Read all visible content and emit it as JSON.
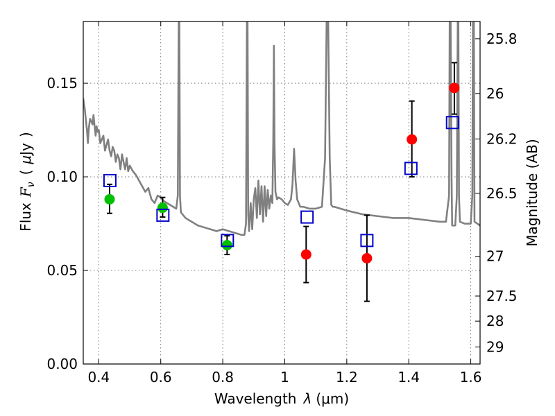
{
  "chart_data": {
    "type": "scatter",
    "title": "",
    "xlabel_text": "Wavelength",
    "xlabel_symbol": "λ",
    "xlabel_unit": "(μm)",
    "ylabel_text": "Flux",
    "ylabel_symbol": "F",
    "ylabel_symbol_sub": "ν",
    "ylabel_open": "(",
    "ylabel_unit_mu": "μ",
    "ylabel_unit_rest": "Jy",
    "ylabel_close": ")",
    "y2label": "Magnitude (AB)",
    "xlim": [
      0.35,
      1.63
    ],
    "ylim": [
      0.0,
      0.183
    ],
    "grid": true,
    "x_ticks": [
      0.4,
      0.6,
      0.8,
      1.0,
      1.2,
      1.4,
      1.6
    ],
    "x_tick_labels": [
      "0.4",
      "0.6",
      "0.8",
      "1",
      "1.2",
      "1.4",
      "1.6"
    ],
    "y_ticks": [
      0.0,
      0.05,
      0.1,
      0.15
    ],
    "y_tick_labels": [
      "0.00",
      "0.05",
      "0.10",
      "0.15"
    ],
    "mag_ticks": [
      25.8,
      26,
      26.2,
      26.5,
      27,
      27.5,
      28,
      29
    ],
    "mag_tick_labels": [
      "25.8",
      "26",
      "26.2",
      "26.5",
      "27",
      "27.5",
      "28",
      "29"
    ],
    "colors": {
      "model": "#808080",
      "green": "#00c000",
      "red": "#ff0000",
      "model_box": "#0000cc",
      "errorbar": "#000000"
    },
    "series": [
      {
        "name": "observed-green",
        "marker": "circle",
        "color": "green",
        "points": [
          {
            "x": 0.435,
            "y": 0.088,
            "err_lo": 0.0075,
            "err_hi": 0.008
          },
          {
            "x": 0.606,
            "y": 0.0835,
            "err_lo": 0.005,
            "err_hi": 0.0055
          },
          {
            "x": 0.814,
            "y": 0.0635,
            "err_lo": 0.005,
            "err_hi": 0.005
          }
        ]
      },
      {
        "name": "observed-red",
        "marker": "circle",
        "color": "red",
        "points": [
          {
            "x": 1.069,
            "y": 0.0585,
            "err_lo": 0.015,
            "err_hi": 0.015
          },
          {
            "x": 1.265,
            "y": 0.0565,
            "err_lo": 0.023,
            "err_hi": 0.023
          },
          {
            "x": 1.41,
            "y": 0.12,
            "err_lo": 0.02,
            "err_hi": 0.0205
          },
          {
            "x": 1.547,
            "y": 0.1475,
            "err_lo": 0.014,
            "err_hi": 0.0135
          }
        ]
      },
      {
        "name": "model-photometry",
        "marker": "square",
        "color": "model_box",
        "points": [
          {
            "x": 0.436,
            "y": 0.098
          },
          {
            "x": 0.607,
            "y": 0.0795
          },
          {
            "x": 0.815,
            "y": 0.066
          },
          {
            "x": 1.072,
            "y": 0.0785
          },
          {
            "x": 1.265,
            "y": 0.066
          },
          {
            "x": 1.407,
            "y": 0.1045
          },
          {
            "x": 1.541,
            "y": 0.129
          }
        ]
      }
    ],
    "model_spectrum": {
      "name": "template-sed",
      "color": "model",
      "x": [
        0.35,
        0.355,
        0.36,
        0.362,
        0.365,
        0.368,
        0.372,
        0.375,
        0.38,
        0.383,
        0.386,
        0.39,
        0.393,
        0.397,
        0.4,
        0.405,
        0.41,
        0.415,
        0.42,
        0.425,
        0.43,
        0.435,
        0.44,
        0.445,
        0.45,
        0.455,
        0.46,
        0.465,
        0.47,
        0.475,
        0.48,
        0.485,
        0.49,
        0.495,
        0.5,
        0.51,
        0.52,
        0.53,
        0.54,
        0.55,
        0.56,
        0.57,
        0.58,
        0.59,
        0.6,
        0.61,
        0.62,
        0.63,
        0.64,
        0.65,
        0.655,
        0.658,
        0.66,
        0.662,
        0.665,
        0.68,
        0.7,
        0.72,
        0.74,
        0.76,
        0.78,
        0.8,
        0.82,
        0.84,
        0.86,
        0.87,
        0.875,
        0.878,
        0.88,
        0.882,
        0.885,
        0.89,
        0.895,
        0.9,
        0.905,
        0.91,
        0.915,
        0.92,
        0.925,
        0.93,
        0.935,
        0.94,
        0.945,
        0.95,
        0.955,
        0.96,
        0.963,
        0.965,
        0.967,
        0.97,
        0.975,
        0.98,
        0.99,
        1.0,
        1.01,
        1.02,
        1.025,
        1.03,
        1.035,
        1.04,
        1.05,
        1.06,
        1.08,
        1.1,
        1.12,
        1.13,
        1.135,
        1.14,
        1.145,
        1.15,
        1.155,
        1.16,
        1.2,
        1.25,
        1.3,
        1.35,
        1.4,
        1.45,
        1.5,
        1.52,
        1.53,
        1.532,
        1.535,
        1.538,
        1.54,
        1.55,
        1.555,
        1.558,
        1.56,
        1.562,
        1.565,
        1.58,
        1.6,
        1.605,
        1.607,
        1.61,
        1.612,
        1.63
      ],
      "y": [
        0.142,
        0.136,
        0.128,
        0.125,
        0.118,
        0.126,
        0.131,
        0.13,
        0.128,
        0.133,
        0.128,
        0.122,
        0.127,
        0.124,
        0.125,
        0.118,
        0.12,
        0.122,
        0.114,
        0.117,
        0.12,
        0.114,
        0.111,
        0.116,
        0.114,
        0.108,
        0.112,
        0.11,
        0.104,
        0.112,
        0.108,
        0.104,
        0.11,
        0.103,
        0.106,
        0.103,
        0.101,
        0.098,
        0.095,
        0.092,
        0.094,
        0.088,
        0.086,
        0.09,
        0.089,
        0.087,
        0.086,
        0.085,
        0.084,
        0.083,
        0.09,
        0.183,
        0.183,
        0.09,
        0.081,
        0.078,
        0.076,
        0.074,
        0.073,
        0.072,
        0.071,
        0.072,
        0.071,
        0.07,
        0.069,
        0.069,
        0.075,
        0.183,
        0.183,
        0.08,
        0.071,
        0.086,
        0.072,
        0.088,
        0.094,
        0.078,
        0.098,
        0.08,
        0.095,
        0.076,
        0.095,
        0.079,
        0.093,
        0.083,
        0.09,
        0.086,
        0.12,
        0.17,
        0.118,
        0.092,
        0.088,
        0.089,
        0.088,
        0.086,
        0.085,
        0.088,
        0.096,
        0.115,
        0.098,
        0.088,
        0.084,
        0.084,
        0.083,
        0.083,
        0.084,
        0.11,
        0.183,
        0.183,
        0.11,
        0.085,
        0.084,
        0.084,
        0.082,
        0.08,
        0.079,
        0.078,
        0.078,
        0.077,
        0.076,
        0.076,
        0.09,
        0.183,
        0.183,
        0.1,
        0.074,
        0.074,
        0.09,
        0.183,
        0.183,
        0.09,
        0.076,
        0.075,
        0.075,
        0.09,
        0.183,
        0.183,
        0.076,
        0.074
      ]
    }
  }
}
